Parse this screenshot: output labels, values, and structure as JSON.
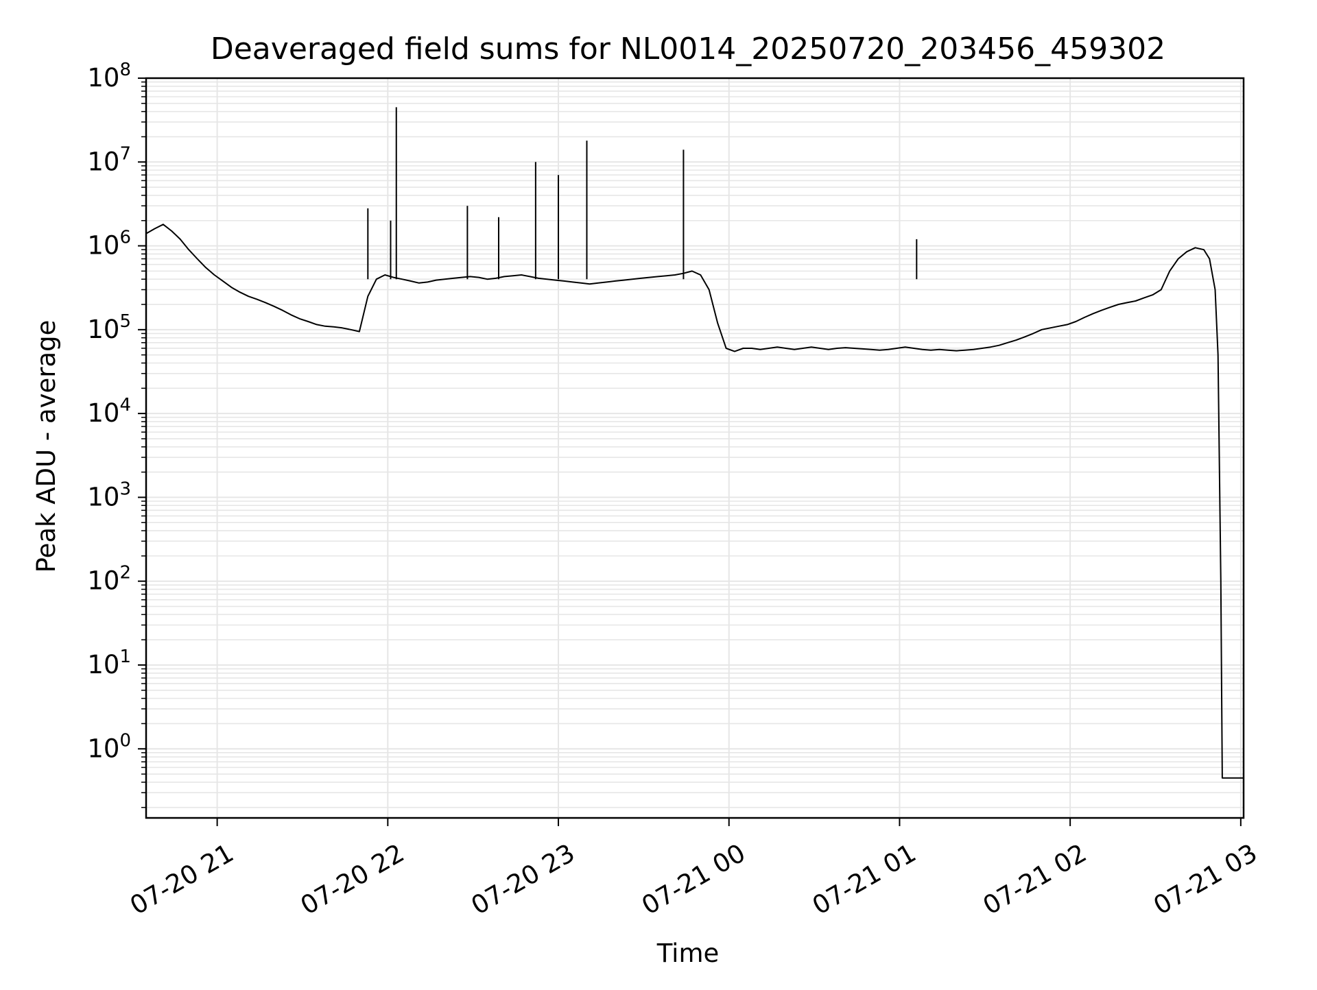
{
  "chart_data": {
    "type": "line",
    "title": "Deaveraged field sums for NL0014_20250720_203456_459302",
    "xlabel": "Time",
    "ylabel": "Peak ADU - average",
    "yscale": "log",
    "ylim": [
      0.15,
      100000000
    ],
    "xlim": [
      "2025-07-20 20:35",
      "2025-07-21 03:01"
    ],
    "grid": true,
    "line_color": "#000000",
    "grid_color": "#e6e6e6",
    "x_ticks": [
      {
        "label": "07-20 21",
        "value": "2025-07-20 21:00"
      },
      {
        "label": "07-20 22",
        "value": "2025-07-20 22:00"
      },
      {
        "label": "07-20 23",
        "value": "2025-07-20 23:00"
      },
      {
        "label": "07-21 00",
        "value": "2025-07-21 00:00"
      },
      {
        "label": "07-21 01",
        "value": "2025-07-21 01:00"
      },
      {
        "label": "07-21 02",
        "value": "2025-07-21 02:00"
      },
      {
        "label": "07-21 03",
        "value": "2025-07-21 03:00"
      }
    ],
    "y_ticks": [
      {
        "base": "10",
        "exp": "0",
        "value": 1
      },
      {
        "base": "10",
        "exp": "1",
        "value": 10
      },
      {
        "base": "10",
        "exp": "2",
        "value": 100
      },
      {
        "base": "10",
        "exp": "3",
        "value": 1000
      },
      {
        "base": "10",
        "exp": "4",
        "value": 10000
      },
      {
        "base": "10",
        "exp": "5",
        "value": 100000
      },
      {
        "base": "10",
        "exp": "6",
        "value": 1000000
      },
      {
        "base": "10",
        "exp": "7",
        "value": 10000000
      },
      {
        "base": "10",
        "exp": "8",
        "value": 100000000
      }
    ],
    "series": [
      {
        "points": [
          [
            "2025-07-20 20:35",
            1400000
          ],
          [
            "2025-07-20 20:38",
            1600000
          ],
          [
            "2025-07-20 20:41",
            1800000
          ],
          [
            "2025-07-20 20:44",
            1500000
          ],
          [
            "2025-07-20 20:47",
            1200000
          ],
          [
            "2025-07-20 20:50",
            900000
          ],
          [
            "2025-07-20 20:53",
            700000
          ],
          [
            "2025-07-20 20:56",
            550000
          ],
          [
            "2025-07-20 20:59",
            450000
          ],
          [
            "2025-07-20 21:02",
            380000
          ],
          [
            "2025-07-20 21:05",
            320000
          ],
          [
            "2025-07-20 21:08",
            280000
          ],
          [
            "2025-07-20 21:11",
            250000
          ],
          [
            "2025-07-20 21:14",
            230000
          ],
          [
            "2025-07-20 21:17",
            210000
          ],
          [
            "2025-07-20 21:20",
            190000
          ],
          [
            "2025-07-20 21:23",
            170000
          ],
          [
            "2025-07-20 21:26",
            150000
          ],
          [
            "2025-07-20 21:29",
            135000
          ],
          [
            "2025-07-20 21:32",
            125000
          ],
          [
            "2025-07-20 21:35",
            115000
          ],
          [
            "2025-07-20 21:38",
            110000
          ],
          [
            "2025-07-20 21:41",
            108000
          ],
          [
            "2025-07-20 21:44",
            105000
          ],
          [
            "2025-07-20 21:47",
            100000
          ],
          [
            "2025-07-20 21:50",
            95000
          ],
          [
            "2025-07-20 21:53",
            250000
          ],
          [
            "2025-07-20 21:56",
            400000
          ],
          [
            "2025-07-20 21:59",
            450000
          ],
          [
            "2025-07-20 22:02",
            420000
          ],
          [
            "2025-07-20 22:05",
            400000
          ],
          [
            "2025-07-20 22:08",
            380000
          ],
          [
            "2025-07-20 22:11",
            360000
          ],
          [
            "2025-07-20 22:14",
            370000
          ],
          [
            "2025-07-20 22:17",
            390000
          ],
          [
            "2025-07-20 22:20",
            400000
          ],
          [
            "2025-07-20 22:23",
            410000
          ],
          [
            "2025-07-20 22:26",
            420000
          ],
          [
            "2025-07-20 22:29",
            430000
          ],
          [
            "2025-07-20 22:32",
            420000
          ],
          [
            "2025-07-20 22:35",
            400000
          ],
          [
            "2025-07-20 22:38",
            410000
          ],
          [
            "2025-07-20 22:41",
            430000
          ],
          [
            "2025-07-20 22:44",
            440000
          ],
          [
            "2025-07-20 22:47",
            450000
          ],
          [
            "2025-07-20 22:50",
            430000
          ],
          [
            "2025-07-20 22:53",
            410000
          ],
          [
            "2025-07-20 22:56",
            400000
          ],
          [
            "2025-07-20 22:59",
            390000
          ],
          [
            "2025-07-20 23:02",
            380000
          ],
          [
            "2025-07-20 23:05",
            370000
          ],
          [
            "2025-07-20 23:08",
            360000
          ],
          [
            "2025-07-20 23:11",
            350000
          ],
          [
            "2025-07-20 23:14",
            360000
          ],
          [
            "2025-07-20 23:17",
            370000
          ],
          [
            "2025-07-20 23:20",
            380000
          ],
          [
            "2025-07-20 23:23",
            390000
          ],
          [
            "2025-07-20 23:26",
            400000
          ],
          [
            "2025-07-20 23:29",
            410000
          ],
          [
            "2025-07-20 23:32",
            420000
          ],
          [
            "2025-07-20 23:35",
            430000
          ],
          [
            "2025-07-20 23:38",
            440000
          ],
          [
            "2025-07-20 23:41",
            450000
          ],
          [
            "2025-07-20 23:44",
            470000
          ],
          [
            "2025-07-20 23:47",
            500000
          ],
          [
            "2025-07-20 23:50",
            450000
          ],
          [
            "2025-07-20 23:53",
            300000
          ],
          [
            "2025-07-20 23:56",
            120000
          ],
          [
            "2025-07-20 23:59",
            60000
          ],
          [
            "2025-07-21 00:02",
            55000
          ],
          [
            "2025-07-21 00:05",
            60000
          ],
          [
            "2025-07-21 00:08",
            60000
          ],
          [
            "2025-07-21 00:11",
            58000
          ],
          [
            "2025-07-21 00:14",
            60000
          ],
          [
            "2025-07-21 00:17",
            62000
          ],
          [
            "2025-07-21 00:20",
            60000
          ],
          [
            "2025-07-21 00:23",
            58000
          ],
          [
            "2025-07-21 00:26",
            60000
          ],
          [
            "2025-07-21 00:29",
            62000
          ],
          [
            "2025-07-21 00:32",
            60000
          ],
          [
            "2025-07-21 00:35",
            58000
          ],
          [
            "2025-07-21 00:38",
            60000
          ],
          [
            "2025-07-21 00:41",
            61000
          ],
          [
            "2025-07-21 00:44",
            60000
          ],
          [
            "2025-07-21 00:47",
            59000
          ],
          [
            "2025-07-21 00:50",
            58000
          ],
          [
            "2025-07-21 00:53",
            57000
          ],
          [
            "2025-07-21 00:56",
            58000
          ],
          [
            "2025-07-21 00:59",
            60000
          ],
          [
            "2025-07-21 01:02",
            62000
          ],
          [
            "2025-07-21 01:05",
            60000
          ],
          [
            "2025-07-21 01:08",
            58000
          ],
          [
            "2025-07-21 01:11",
            57000
          ],
          [
            "2025-07-21 01:14",
            58000
          ],
          [
            "2025-07-21 01:17",
            57000
          ],
          [
            "2025-07-21 01:20",
            56000
          ],
          [
            "2025-07-21 01:23",
            57000
          ],
          [
            "2025-07-21 01:26",
            58000
          ],
          [
            "2025-07-21 01:29",
            60000
          ],
          [
            "2025-07-21 01:32",
            62000
          ],
          [
            "2025-07-21 01:35",
            65000
          ],
          [
            "2025-07-21 01:38",
            70000
          ],
          [
            "2025-07-21 01:41",
            75000
          ],
          [
            "2025-07-21 01:44",
            82000
          ],
          [
            "2025-07-21 01:47",
            90000
          ],
          [
            "2025-07-21 01:50",
            100000
          ],
          [
            "2025-07-21 01:53",
            105000
          ],
          [
            "2025-07-21 01:56",
            110000
          ],
          [
            "2025-07-21 01:59",
            115000
          ],
          [
            "2025-07-21 02:02",
            125000
          ],
          [
            "2025-07-21 02:05",
            140000
          ],
          [
            "2025-07-21 02:08",
            155000
          ],
          [
            "2025-07-21 02:11",
            170000
          ],
          [
            "2025-07-21 02:14",
            185000
          ],
          [
            "2025-07-21 02:17",
            200000
          ],
          [
            "2025-07-21 02:20",
            210000
          ],
          [
            "2025-07-21 02:23",
            220000
          ],
          [
            "2025-07-21 02:26",
            240000
          ],
          [
            "2025-07-21 02:29",
            260000
          ],
          [
            "2025-07-21 02:32",
            300000
          ],
          [
            "2025-07-21 02:35",
            500000
          ],
          [
            "2025-07-21 02:38",
            700000
          ],
          [
            "2025-07-21 02:41",
            850000
          ],
          [
            "2025-07-21 02:44",
            950000
          ],
          [
            "2025-07-21 02:47",
            900000
          ],
          [
            "2025-07-21 02:49",
            700000
          ],
          [
            "2025-07-21 02:51",
            300000
          ],
          [
            "2025-07-21 02:52",
            50000
          ],
          [
            "2025-07-21 02:53",
            100
          ],
          [
            "2025-07-21 02:53.5",
            0.45
          ],
          [
            "2025-07-21 03:01",
            0.45
          ]
        ]
      }
    ],
    "spikes": [
      {
        "x": "2025-07-20 22:03",
        "y": 45000000
      },
      {
        "x": "2025-07-20 22:52",
        "y": 10000000
      },
      {
        "x": "2025-07-20 23:00",
        "y": 7000000
      },
      {
        "x": "2025-07-20 23:10",
        "y": 18000000
      },
      {
        "x": "2025-07-20 23:44",
        "y": 14000000
      },
      {
        "x": "2025-07-20 21:53",
        "y": 2800000
      },
      {
        "x": "2025-07-20 22:01",
        "y": 2000000
      },
      {
        "x": "2025-07-20 22:28",
        "y": 3000000
      },
      {
        "x": "2025-07-20 22:39",
        "y": 2200000
      },
      {
        "x": "2025-07-21 01:06",
        "y": 1200000
      }
    ]
  }
}
